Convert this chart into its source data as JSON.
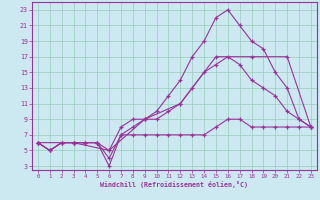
{
  "xlabel": "Windchill (Refroidissement éolien,°C)",
  "bg_color": "#cce8f0",
  "grid_color": "#99ccbb",
  "line_color": "#993399",
  "spine_color": "#993399",
  "xlim": [
    -0.5,
    23.5
  ],
  "ylim": [
    2.5,
    24.0
  ],
  "xticks": [
    0,
    1,
    2,
    3,
    4,
    5,
    6,
    7,
    8,
    9,
    10,
    11,
    12,
    13,
    14,
    15,
    16,
    17,
    18,
    19,
    20,
    21,
    22,
    23
  ],
  "yticks": [
    3,
    5,
    7,
    9,
    11,
    13,
    15,
    17,
    19,
    21,
    23
  ],
  "series": [
    {
      "x": [
        0,
        1,
        2,
        3,
        4,
        5,
        6,
        7,
        8,
        9,
        10,
        11,
        12,
        13,
        14,
        15,
        16,
        17,
        18,
        19,
        20,
        21,
        22,
        23
      ],
      "y": [
        6,
        5,
        6,
        6,
        6,
        6,
        5,
        8,
        9,
        9,
        10,
        12,
        14,
        17,
        19,
        22,
        23,
        21,
        19,
        18,
        15,
        13,
        9,
        8
      ]
    },
    {
      "x": [
        0,
        1,
        2,
        3,
        4,
        5,
        6,
        7,
        8,
        9,
        10,
        11,
        12,
        13,
        14,
        15,
        16,
        17,
        18,
        19,
        20,
        21,
        22,
        23
      ],
      "y": [
        6,
        5,
        6,
        6,
        6,
        6,
        4,
        7,
        8,
        9,
        9,
        10,
        11,
        13,
        15,
        16,
        17,
        16,
        14,
        13,
        12,
        10,
        9,
        8
      ]
    },
    {
      "x": [
        0,
        1,
        2,
        3,
        4,
        5,
        6,
        7,
        8,
        9,
        10,
        11,
        12,
        13,
        14,
        15,
        16,
        17,
        18,
        19,
        20,
        21,
        22,
        23
      ],
      "y": [
        6,
        5,
        6,
        6,
        6,
        6,
        3,
        7,
        7,
        7,
        7,
        7,
        7,
        7,
        7,
        8,
        9,
        9,
        8,
        8,
        8,
        8,
        8,
        8
      ]
    },
    {
      "x": [
        0,
        3,
        6,
        9,
        12,
        15,
        18,
        21,
        23
      ],
      "y": [
        6,
        6,
        5,
        9,
        11,
        17,
        17,
        17,
        8
      ]
    }
  ]
}
